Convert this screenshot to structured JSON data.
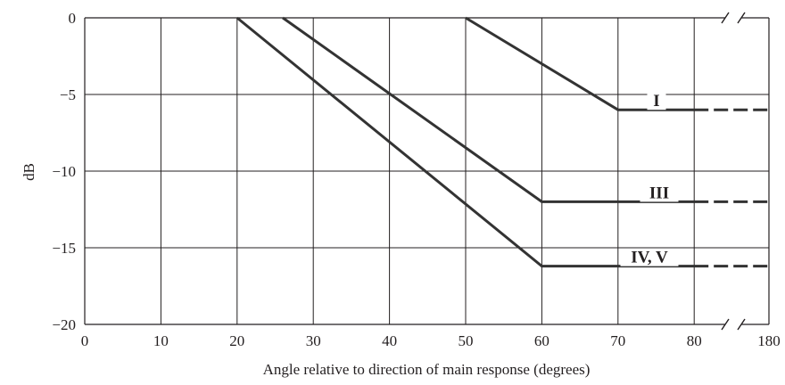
{
  "chart_data": {
    "type": "line",
    "xlabel": "Angle relative to direction of main response (degrees)",
    "ylabel": "dB",
    "x_ticks": [
      "0",
      "10",
      "20",
      "30",
      "40",
      "50",
      "60",
      "70",
      "80",
      "180"
    ],
    "x_tick_values": [
      0,
      10,
      20,
      30,
      40,
      50,
      60,
      70,
      80,
      90
    ],
    "y_ticks": [
      "0",
      "−5",
      "−10",
      "−15",
      "−20"
    ],
    "y_tick_values": [
      0,
      -5,
      -10,
      -15,
      -20
    ],
    "xlim": [
      0,
      90
    ],
    "ylim": [
      -20,
      0
    ],
    "grid": true,
    "axis_break": "between 80 and 180",
    "series": [
      {
        "name": "I",
        "x": [
          50,
          70,
          80
        ],
        "y": [
          0,
          -6,
          -6
        ],
        "dashed_to": 180
      },
      {
        "name": "III",
        "x": [
          26,
          60,
          80
        ],
        "y": [
          0,
          -12,
          -12
        ],
        "dashed_to": 180
      },
      {
        "name": "IV, V",
        "x": [
          20,
          60,
          80
        ],
        "y": [
          0,
          -16.2,
          -16.2
        ],
        "dashed_to": 180
      }
    ]
  },
  "colors": {
    "line": "#333333",
    "grid": "#231f20",
    "background": "#ffffff"
  }
}
